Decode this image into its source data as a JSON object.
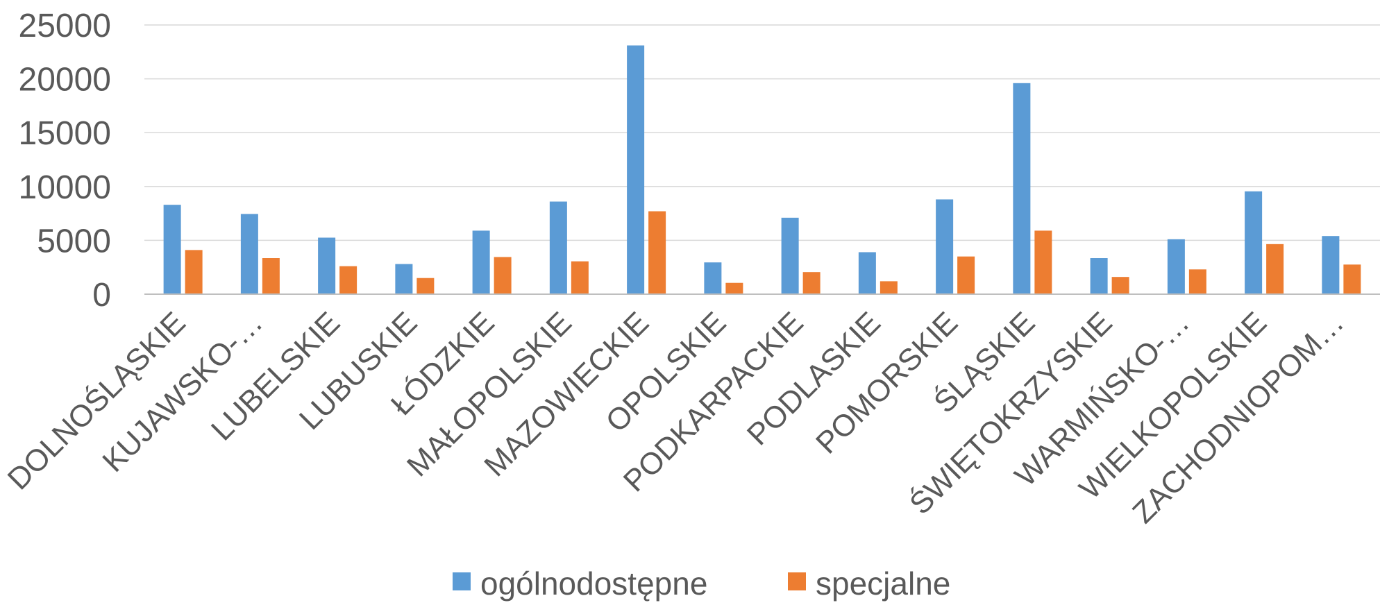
{
  "chart_data": {
    "type": "bar",
    "categories": [
      "DOLNOŚLĄSKIE",
      "KUJAWSKO-…",
      "LUBELSKIE",
      "LUBUSKIE",
      "ŁÓDZKIE",
      "MAŁOPOLSKIE",
      "MAZOWIECKIE",
      "OPOLSKIE",
      "PODKARPACKIE",
      "PODLASKIE",
      "POMORSKIE",
      "ŚLĄSKIE",
      "ŚWIĘTOKRZYSKIE",
      "WARMIŃSKO-…",
      "WIELKOPOLSKIE",
      "ZACHODNIOPOM…"
    ],
    "series": [
      {
        "name": "ogólnodostępne",
        "color": "#5b9bd5",
        "values": [
          8300,
          7450,
          5250,
          2800,
          5900,
          8600,
          23100,
          2950,
          7100,
          3900,
          8800,
          19600,
          3350,
          5100,
          9550,
          5400
        ]
      },
      {
        "name": "specjalne",
        "color": "#ed7d31",
        "values": [
          4100,
          3350,
          2600,
          1500,
          3450,
          3050,
          7700,
          1050,
          2050,
          1200,
          3500,
          5900,
          1600,
          2300,
          4650,
          2750
        ]
      }
    ],
    "ylim": [
      0,
      25000
    ],
    "yticks": [
      0,
      5000,
      10000,
      15000,
      20000,
      25000
    ],
    "grid": true,
    "legend_position": "bottom"
  }
}
